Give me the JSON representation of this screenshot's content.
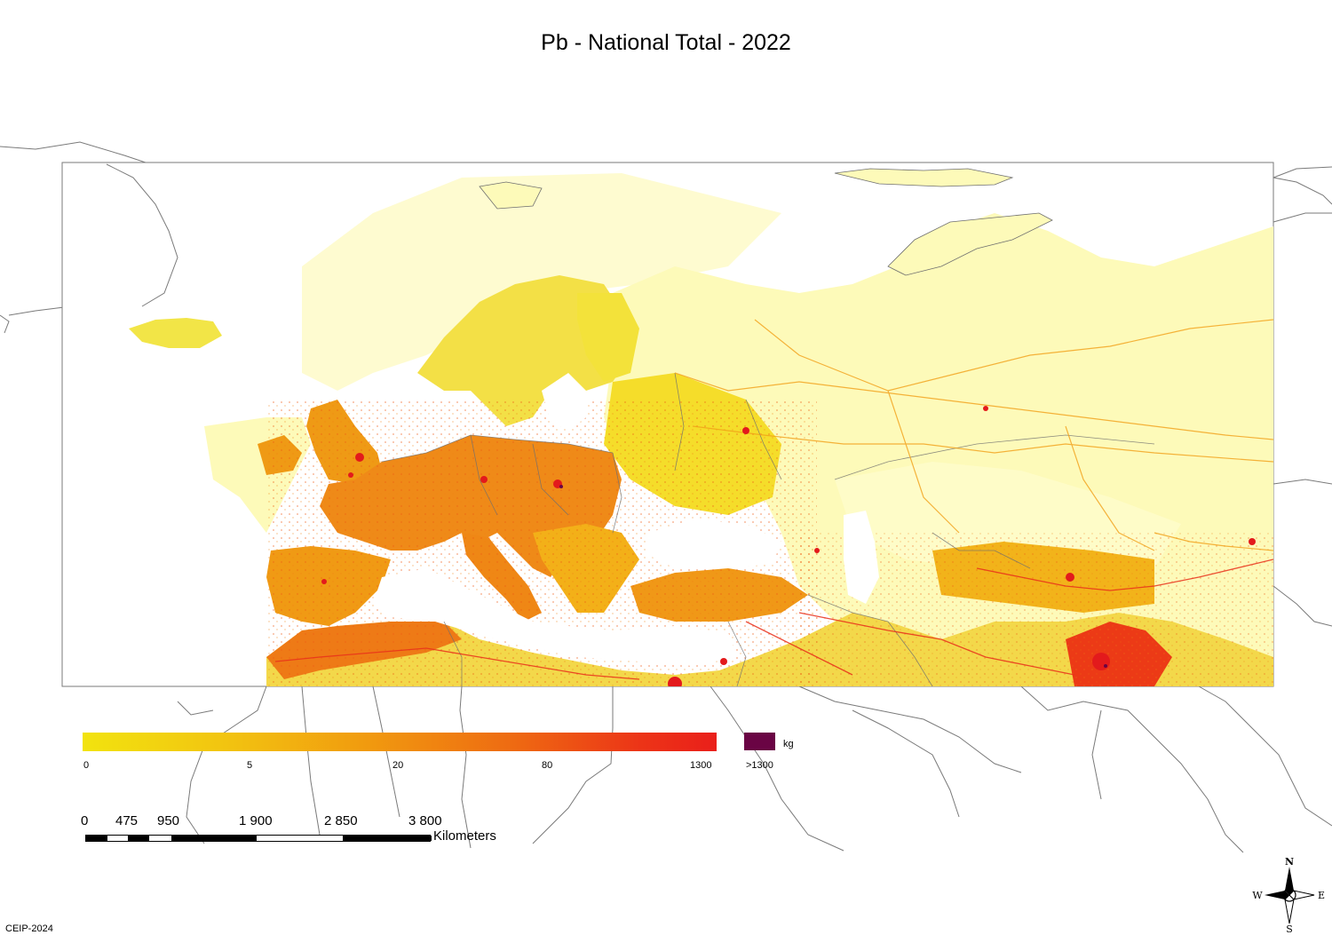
{
  "title": "Pb - National Total - 2022",
  "legend": {
    "ticks": [
      "0",
      "5",
      "20",
      "80",
      "1300"
    ],
    "over_label": ">1300",
    "unit": "kg",
    "colors": {
      "low": "#f2e30f",
      "mid": "#f19a0f",
      "high": "#ea1f1a",
      "over": "#6a0444",
      "base": "#fdfab9"
    }
  },
  "scale_bar": {
    "labels": [
      "0",
      "475",
      "950",
      "1 900",
      "2 850",
      "3 800"
    ],
    "unit": "Kilometers"
  },
  "compass": {
    "n": "N",
    "s": "S",
    "e": "E",
    "w": "W"
  },
  "credit": "CEIP-2024"
}
